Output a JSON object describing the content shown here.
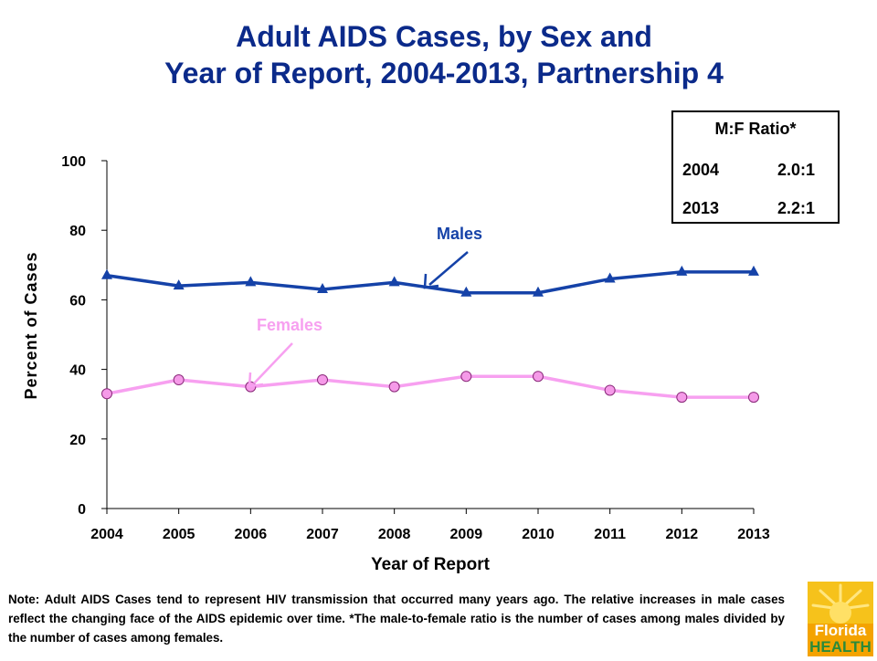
{
  "title_line1": "Adult AIDS Cases, by Sex and",
  "title_line2": "Year of Report, 2004-2013, Partnership 4",
  "ratio_box": {
    "title": "M:F Ratio*",
    "rows": [
      {
        "year": "2004",
        "ratio": "2.0:1"
      },
      {
        "year": "2013",
        "ratio": "2.2:1"
      }
    ]
  },
  "note": "Note: Adult AIDS Cases tend to represent HIV transmission that occurred many years ago.  The relative increases in male cases reflect the changing face of the AIDS epidemic over time. *The male-to-female ratio is the number of cases among males divided by the number of cases among females.",
  "logo": {
    "line1": "Florida",
    "line2": "HEALTH"
  },
  "colors": {
    "males": "#1542A8",
    "females": "#F7A0F0",
    "females_marker": "#F59AE8",
    "title": "#0B2A8A"
  },
  "chart_data": {
    "type": "line",
    "x": [
      2004,
      2005,
      2006,
      2007,
      2008,
      2009,
      2010,
      2011,
      2012,
      2013
    ],
    "xlabel": "Year of Report",
    "ylabel": "Percent of Cases",
    "ylim": [
      0,
      100
    ],
    "yticks": [
      0,
      20,
      40,
      60,
      80,
      100
    ],
    "series": [
      {
        "name": "Males",
        "marker": "triangle",
        "values": [
          67,
          64,
          65,
          63,
          65,
          62,
          62,
          66,
          68,
          68
        ]
      },
      {
        "name": "Females",
        "marker": "circle",
        "values": [
          33,
          37,
          35,
          37,
          35,
          38,
          38,
          34,
          32,
          32
        ]
      }
    ],
    "grid": false
  }
}
